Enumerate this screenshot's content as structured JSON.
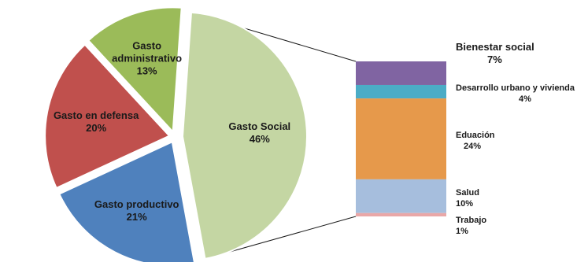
{
  "chart_data": {
    "type": "pie",
    "title": "",
    "pie": {
      "slices": [
        {
          "name": "Gasto Social",
          "value": 46,
          "label": "46%",
          "color": "#c4d6a3"
        },
        {
          "name": "Gasto productivo",
          "value": 21,
          "label": "21%",
          "color": "#4f81bd"
        },
        {
          "name": "Gasto en defensa",
          "value": 20,
          "label": "20%",
          "color": "#c0504d"
        },
        {
          "name": "Gasto administrativo",
          "value": 13,
          "label": "13%",
          "color": "#9bbb59"
        }
      ],
      "exploded": "Gasto Social"
    },
    "breakdown": {
      "type": "stacked_bar",
      "of": "Gasto Social",
      "segments": [
        {
          "name": "Bienestar social",
          "value": 7,
          "label": "7%",
          "color": "#8064a2"
        },
        {
          "name": "Desarrollo urbano y vivienda",
          "value": 4,
          "label": "4%",
          "color": "#4bacc6"
        },
        {
          "name": "Eduación",
          "value": 24,
          "label": "24%",
          "color": "#e6994b"
        },
        {
          "name": "Salud",
          "value": 10,
          "label": "10%",
          "color": "#a6bedd"
        },
        {
          "name": "Trabajo",
          "value": 1,
          "label": "1%",
          "color": "#e9a7a7"
        }
      ]
    }
  }
}
